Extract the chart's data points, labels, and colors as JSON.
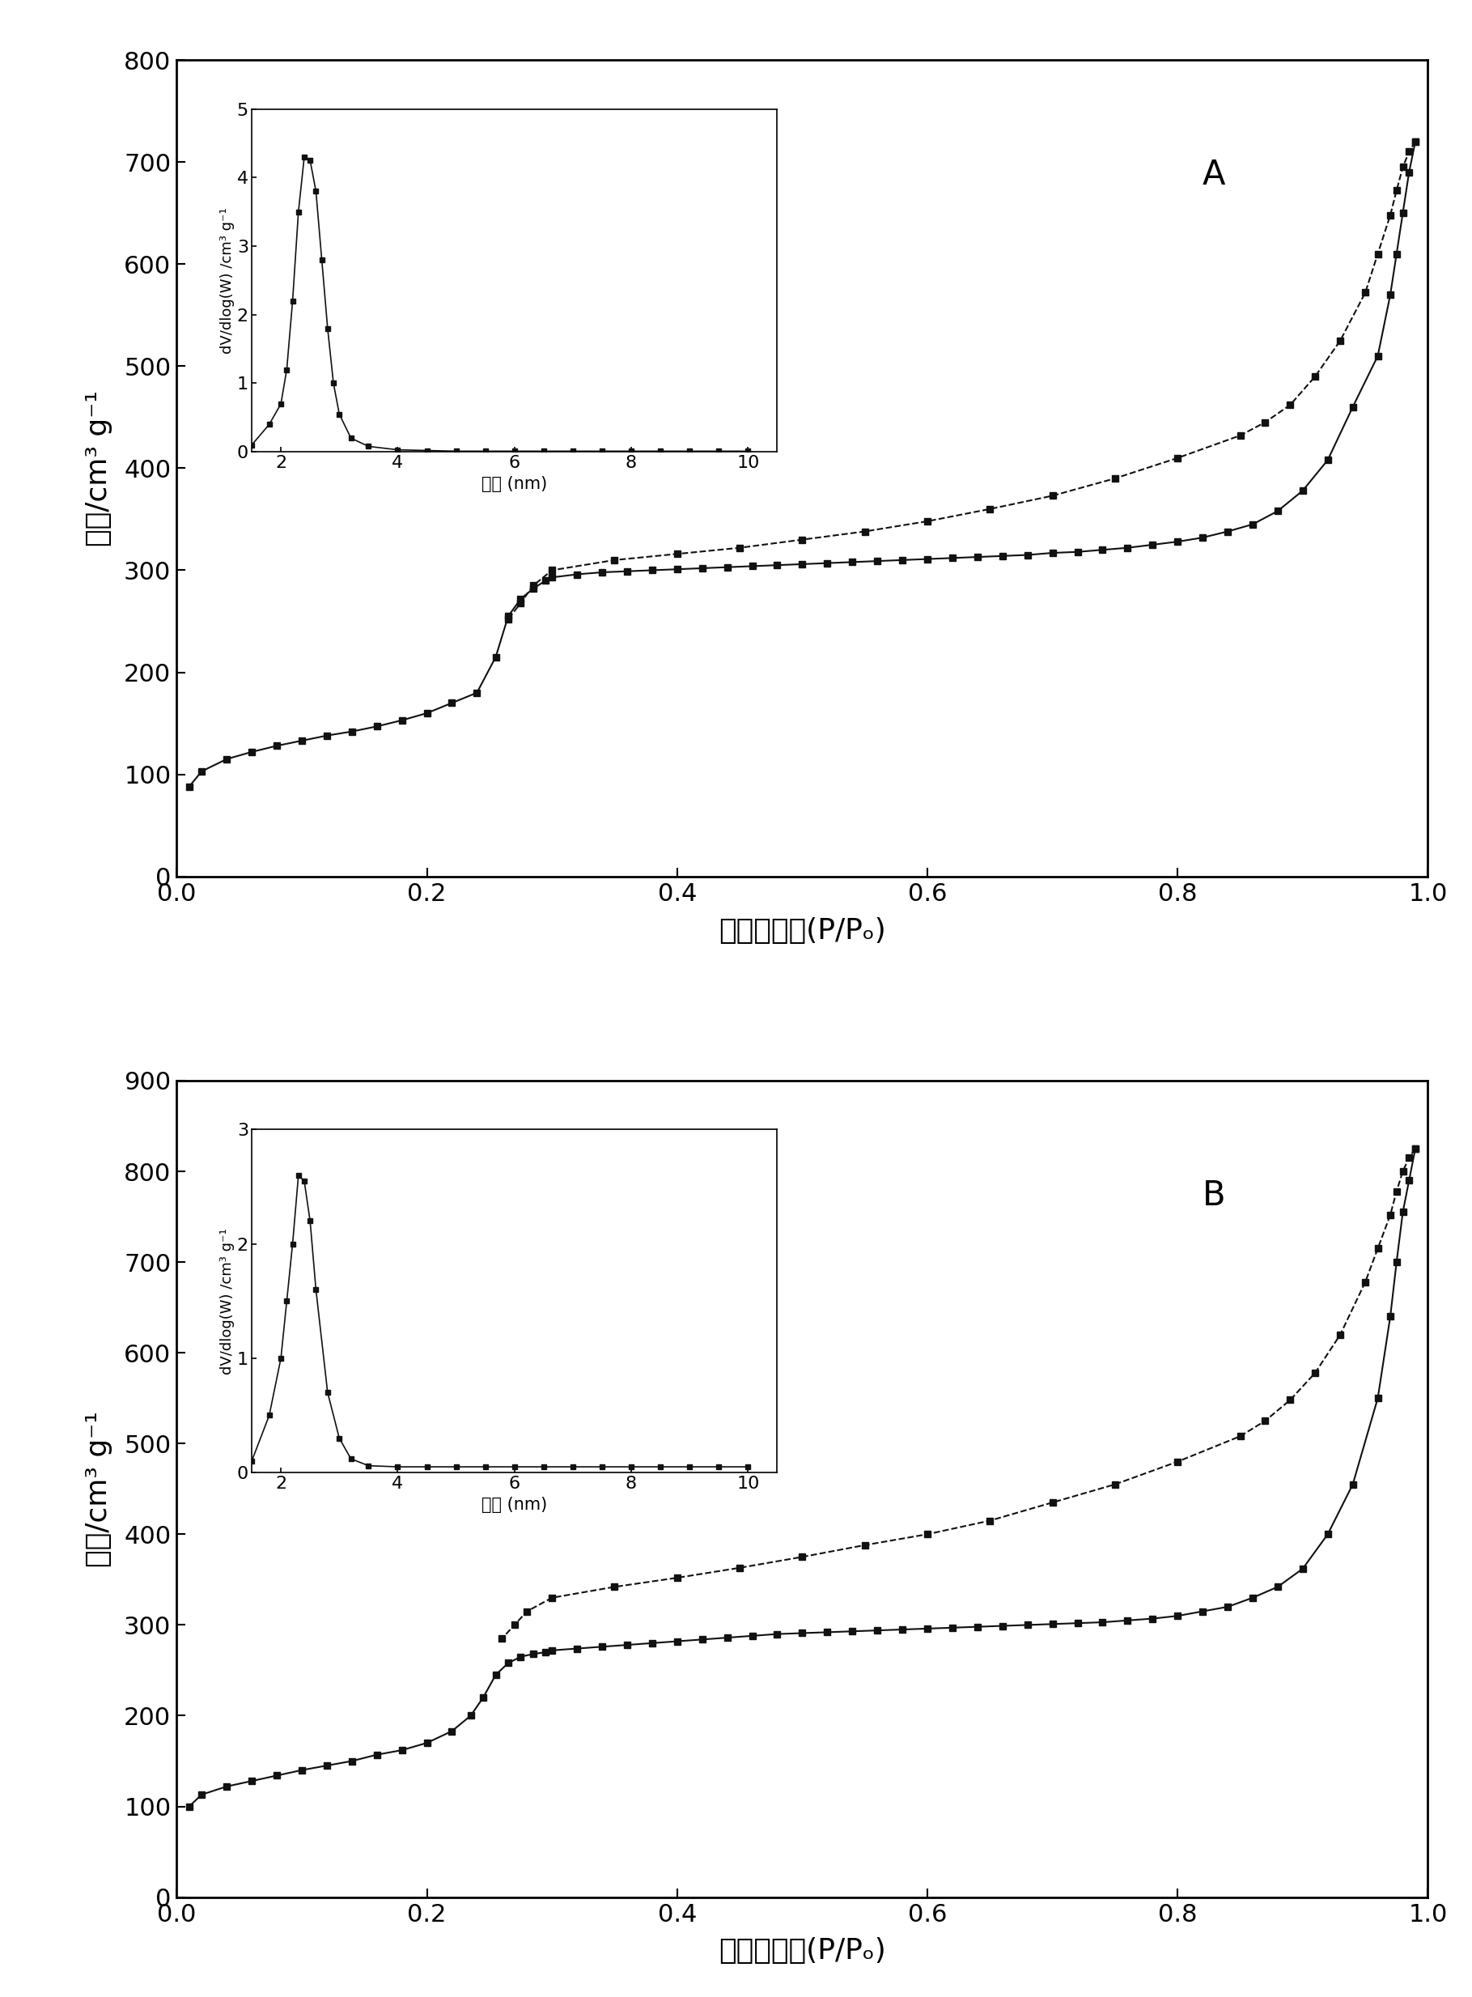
{
  "panel_A": {
    "label": "A",
    "ylabel": "容积/cm³ g⁻¹",
    "xlabel": "相对压力／(P/Pₒ)",
    "ylim": [
      0,
      800
    ],
    "yticks": [
      0,
      100,
      200,
      300,
      400,
      500,
      600,
      700,
      800
    ],
    "xlim": [
      0.0,
      1.0
    ],
    "xticks": [
      0.0,
      0.2,
      0.4,
      0.6,
      0.8,
      1.0
    ],
    "adsorption_x": [
      0.01,
      0.02,
      0.04,
      0.06,
      0.08,
      0.1,
      0.12,
      0.14,
      0.16,
      0.18,
      0.2,
      0.22,
      0.24,
      0.255,
      0.265,
      0.275,
      0.285,
      0.295,
      0.3,
      0.32,
      0.34,
      0.36,
      0.38,
      0.4,
      0.42,
      0.44,
      0.46,
      0.48,
      0.5,
      0.52,
      0.54,
      0.56,
      0.58,
      0.6,
      0.62,
      0.64,
      0.66,
      0.68,
      0.7,
      0.72,
      0.74,
      0.76,
      0.78,
      0.8,
      0.82,
      0.84,
      0.86,
      0.88,
      0.9,
      0.92,
      0.94,
      0.96,
      0.97,
      0.975,
      0.98,
      0.985,
      0.99
    ],
    "adsorption_y": [
      88,
      103,
      115,
      122,
      128,
      133,
      138,
      142,
      147,
      153,
      160,
      170,
      180,
      215,
      255,
      272,
      282,
      290,
      293,
      296,
      298,
      299,
      300,
      301,
      302,
      303,
      304,
      305,
      306,
      307,
      308,
      309,
      310,
      311,
      312,
      313,
      314,
      315,
      317,
      318,
      320,
      322,
      325,
      328,
      332,
      338,
      345,
      358,
      378,
      408,
      460,
      510,
      570,
      610,
      650,
      690,
      720
    ],
    "desorption_x": [
      0.99,
      0.985,
      0.98,
      0.975,
      0.97,
      0.96,
      0.95,
      0.93,
      0.91,
      0.89,
      0.87,
      0.85,
      0.8,
      0.75,
      0.7,
      0.65,
      0.6,
      0.55,
      0.5,
      0.45,
      0.4,
      0.35,
      0.3,
      0.285,
      0.275,
      0.265
    ],
    "desorption_y": [
      720,
      710,
      695,
      672,
      648,
      610,
      572,
      525,
      490,
      462,
      445,
      432,
      410,
      390,
      373,
      360,
      348,
      338,
      330,
      322,
      316,
      310,
      300,
      285,
      268,
      252
    ],
    "inset": {
      "x": [
        1.5,
        1.8,
        2.0,
        2.1,
        2.2,
        2.3,
        2.4,
        2.5,
        2.6,
        2.7,
        2.8,
        2.9,
        3.0,
        3.2,
        3.5,
        4.0,
        4.5,
        5.0,
        5.5,
        6.0,
        6.5,
        7.0,
        7.5,
        8.0,
        8.5,
        9.0,
        9.5,
        10.0
      ],
      "y": [
        0.1,
        0.4,
        0.7,
        1.2,
        2.2,
        3.5,
        4.3,
        4.25,
        3.8,
        2.8,
        1.8,
        1.0,
        0.55,
        0.2,
        0.08,
        0.03,
        0.02,
        0.01,
        0.01,
        0.01,
        0.01,
        0.01,
        0.01,
        0.01,
        0.01,
        0.01,
        0.01,
        0.01
      ],
      "xlabel": "孔径 (nm)",
      "ylabel": "dV/dlog(W) /cm³ g⁻¹",
      "xlim": [
        1.5,
        10.5
      ],
      "ylim": [
        0,
        5
      ],
      "yticks": [
        0,
        1,
        2,
        3,
        4,
        5
      ],
      "xticks": [
        2,
        4,
        6,
        8,
        10
      ]
    }
  },
  "panel_B": {
    "label": "B",
    "ylabel": "容积/cm³ g⁻¹",
    "xlabel": "相对压力／(P/Pₒ)",
    "ylim": [
      0,
      900
    ],
    "yticks": [
      0,
      100,
      200,
      300,
      400,
      500,
      600,
      700,
      800,
      900
    ],
    "xlim": [
      0.0,
      1.0
    ],
    "xticks": [
      0.0,
      0.2,
      0.4,
      0.6,
      0.8,
      1.0
    ],
    "adsorption_x": [
      0.01,
      0.02,
      0.04,
      0.06,
      0.08,
      0.1,
      0.12,
      0.14,
      0.16,
      0.18,
      0.2,
      0.22,
      0.235,
      0.245,
      0.255,
      0.265,
      0.275,
      0.285,
      0.295,
      0.3,
      0.32,
      0.34,
      0.36,
      0.38,
      0.4,
      0.42,
      0.44,
      0.46,
      0.48,
      0.5,
      0.52,
      0.54,
      0.56,
      0.58,
      0.6,
      0.62,
      0.64,
      0.66,
      0.68,
      0.7,
      0.72,
      0.74,
      0.76,
      0.78,
      0.8,
      0.82,
      0.84,
      0.86,
      0.88,
      0.9,
      0.92,
      0.94,
      0.96,
      0.97,
      0.975,
      0.98,
      0.985,
      0.99
    ],
    "adsorption_y": [
      100,
      113,
      122,
      128,
      134,
      140,
      145,
      150,
      157,
      162,
      170,
      183,
      200,
      220,
      245,
      258,
      265,
      268,
      270,
      272,
      274,
      276,
      278,
      280,
      282,
      284,
      286,
      288,
      290,
      291,
      292,
      293,
      294,
      295,
      296,
      297,
      298,
      299,
      300,
      301,
      302,
      303,
      305,
      307,
      310,
      315,
      320,
      330,
      342,
      362,
      400,
      455,
      550,
      640,
      700,
      755,
      790,
      825
    ],
    "desorption_x": [
      0.99,
      0.985,
      0.98,
      0.975,
      0.97,
      0.96,
      0.95,
      0.93,
      0.91,
      0.89,
      0.87,
      0.85,
      0.8,
      0.75,
      0.7,
      0.65,
      0.6,
      0.55,
      0.5,
      0.45,
      0.4,
      0.35,
      0.3,
      0.28,
      0.27,
      0.26
    ],
    "desorption_y": [
      825,
      815,
      800,
      778,
      752,
      715,
      678,
      620,
      578,
      548,
      525,
      508,
      480,
      455,
      435,
      415,
      400,
      388,
      375,
      363,
      352,
      342,
      330,
      315,
      300,
      285
    ],
    "inset": {
      "x": [
        1.5,
        1.8,
        2.0,
        2.1,
        2.2,
        2.3,
        2.4,
        2.5,
        2.6,
        2.8,
        3.0,
        3.2,
        3.5,
        4.0,
        4.5,
        5.0,
        5.5,
        6.0,
        6.5,
        7.0,
        7.5,
        8.0,
        8.5,
        9.0,
        9.5,
        10.0
      ],
      "y": [
        0.1,
        0.5,
        1.0,
        1.5,
        2.0,
        2.6,
        2.55,
        2.2,
        1.6,
        0.7,
        0.3,
        0.12,
        0.06,
        0.05,
        0.05,
        0.05,
        0.05,
        0.05,
        0.05,
        0.05,
        0.05,
        0.05,
        0.05,
        0.05,
        0.05,
        0.05
      ],
      "xlabel": "孔径 (nm)",
      "ylabel": "dV/dlog(W) /cm³ g⁻¹",
      "xlim": [
        1.5,
        10.5
      ],
      "ylim": [
        0,
        3
      ],
      "yticks": [
        0,
        1,
        2,
        3
      ],
      "xticks": [
        2,
        4,
        6,
        8,
        10
      ]
    }
  },
  "marker": "s",
  "markersize": 6,
  "linewidth": 1.5,
  "color": "#111111",
  "background_color": "#ffffff",
  "font_size_label": 26,
  "font_size_tick": 22,
  "font_size_inset_tick": 16,
  "font_size_inset_label": 15,
  "font_size_letter": 30
}
